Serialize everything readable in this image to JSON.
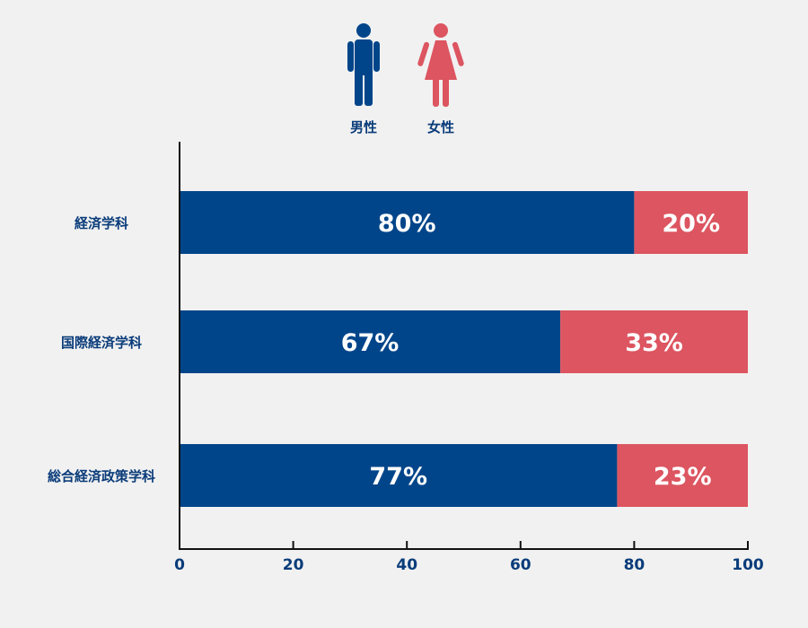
{
  "chart_data": {
    "type": "bar",
    "orientation": "horizontal",
    "stacked": true,
    "categories": [
      "経済学科",
      "国際経済学科",
      "総合経済政策学科"
    ],
    "series": [
      {
        "name": "男性",
        "values": [
          80,
          67,
          77
        ],
        "labels": [
          "80%",
          "67%",
          "77%"
        ],
        "color": "#00458a"
      },
      {
        "name": "女性",
        "values": [
          20,
          33,
          23
        ],
        "labels": [
          "20%",
          "33%",
          "23%"
        ],
        "color": "#dc5560"
      }
    ],
    "xlim": [
      0,
      100
    ],
    "xticks": [
      0,
      20,
      40,
      60,
      80,
      100
    ],
    "grid": false,
    "legend_position": "top-center",
    "legend_icons": [
      "male-person-icon",
      "female-person-icon"
    ]
  }
}
